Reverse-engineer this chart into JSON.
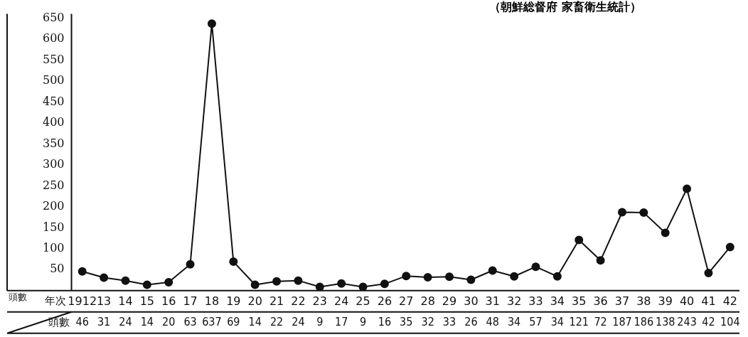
{
  "chart_data": {
    "type": "line",
    "subtitle": "（朝鮮総督府 家畜衛生統計）",
    "xlabel": "年次",
    "ylabel": "頭數",
    "annotations": [
      "頭數"
    ],
    "categories": [
      "1912",
      "13",
      "14",
      "15",
      "16",
      "17",
      "18",
      "19",
      "20",
      "21",
      "22",
      "23",
      "24",
      "25",
      "26",
      "27",
      "28",
      "29",
      "30",
      "31",
      "32",
      "33",
      "34",
      "35",
      "36",
      "37",
      "38",
      "39",
      "40",
      "41",
      "42"
    ],
    "values": [
      46,
      31,
      24,
      14,
      20,
      63,
      637,
      69,
      14,
      22,
      24,
      9,
      17,
      9,
      16,
      35,
      32,
      33,
      26,
      48,
      34,
      57,
      34,
      121,
      72,
      187,
      186,
      138,
      243,
      42,
      104
    ],
    "color": "#111111",
    "marker": "circle",
    "line_style": "solid",
    "grid": false,
    "legend": false,
    "data_labels": true,
    "ylim": [
      0,
      660
    ],
    "yticks": [
      50,
      100,
      150,
      200,
      250,
      300,
      350,
      400,
      450,
      500,
      550,
      600,
      650
    ]
  }
}
